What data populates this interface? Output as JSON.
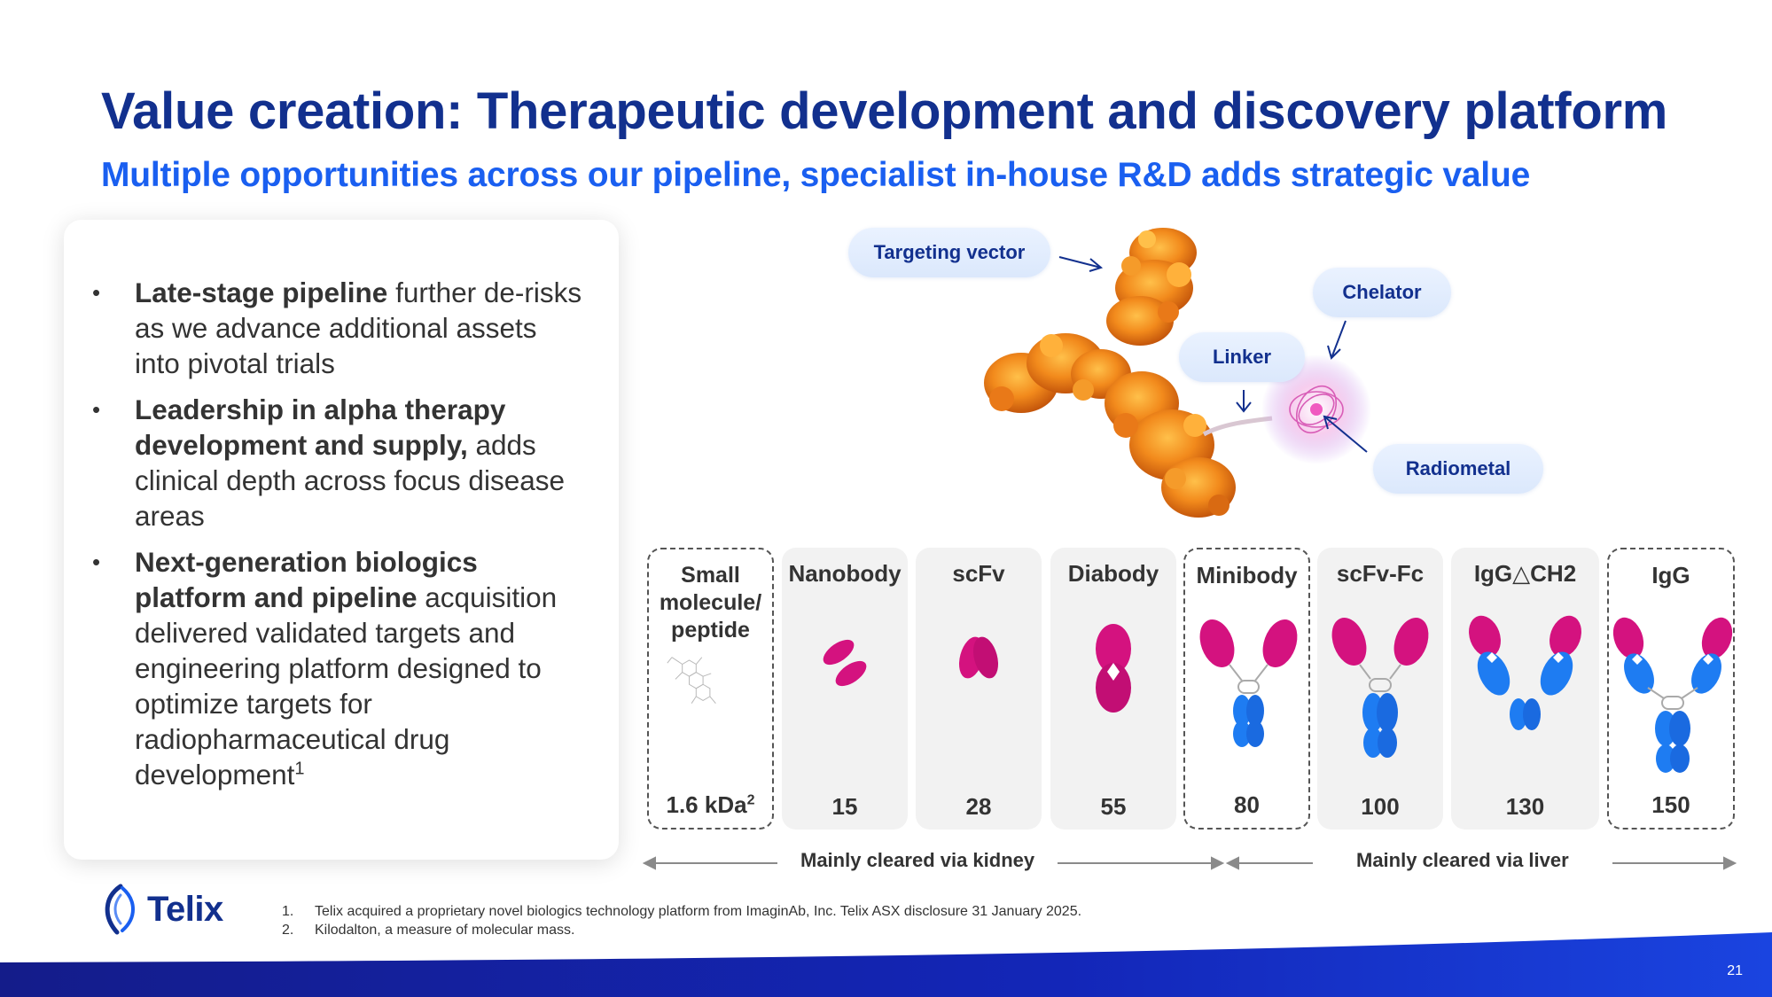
{
  "slide": {
    "title": "Value creation: Therapeutic development and discovery platform",
    "subtitle": "Multiple opportunities across our pipeline, specialist in-house R&D adds strategic value",
    "page_number": "21"
  },
  "bullets": [
    {
      "bold": "Late-stage pipeline",
      "rest": " further de-risks as we advance additional assets into pivotal trials",
      "sup": ""
    },
    {
      "bold": "Leadership in alpha therapy development and supply,",
      "rest": " adds clinical depth across focus disease areas",
      "sup": ""
    },
    {
      "bold": "Next-generation biologics platform and pipeline",
      "rest": " acquisition delivered validated targets and engineering platform designed to optimize targets for radiopharmaceutical drug development",
      "sup": "1"
    }
  ],
  "molecule_labels": {
    "targeting_vector": "Targeting vector",
    "chelator": "Chelator",
    "linker": "Linker",
    "radiometal": "Radiometal"
  },
  "formats": [
    {
      "name": "Small molecule/ peptide",
      "size": "1.6 kDa",
      "size_sup": "2",
      "icon": "small-molecule-icon"
    },
    {
      "name": "Nanobody",
      "size": "15",
      "icon": "nanobody-icon"
    },
    {
      "name": "scFv",
      "size": "28",
      "icon": "scfv-icon"
    },
    {
      "name": "Diabody",
      "size": "55",
      "icon": "diabody-icon"
    },
    {
      "name": "Minibody",
      "size": "80",
      "icon": "minibody-icon"
    },
    {
      "name": "scFv-Fc",
      "size": "100",
      "icon": "scfv-fc-icon"
    },
    {
      "name": "IgG△CH2",
      "size": "130",
      "icon": "igg-dch2-icon"
    },
    {
      "name": "IgG",
      "size": "150",
      "icon": "igg-icon"
    }
  ],
  "clearance": {
    "kidney": "Mainly cleared via kidney",
    "liver": "Mainly cleared via liver"
  },
  "logo": {
    "text": "Telix"
  },
  "footnotes": [
    {
      "num": "1.",
      "text": "Telix acquired a proprietary novel biologics technology platform from ImaginAb, Inc. Telix ASX disclosure 31 January 2025."
    },
    {
      "num": "2.",
      "text": "Kilodalton, a measure of molecular mass."
    }
  ],
  "colors": {
    "title": "#12308e",
    "subtitle": "#1a5ff0",
    "magenta": "#d4127f",
    "blue": "#1e7cf2",
    "footer_band": "#1326a8"
  }
}
